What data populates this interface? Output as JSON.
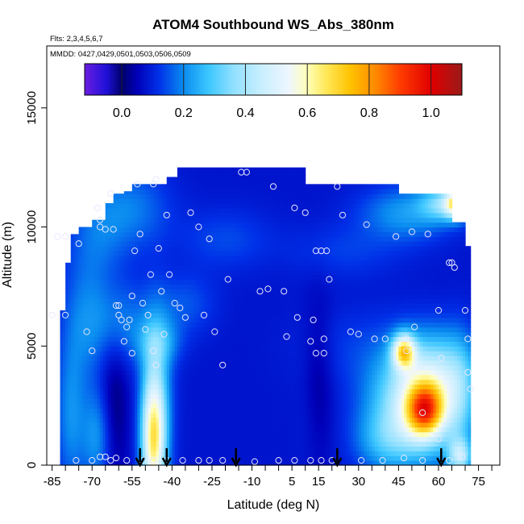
{
  "chart_data": {
    "type": "heatmap",
    "title": "ATOM4 Southbound WS_Abs_380nm",
    "flights_note": "Flts: 2,3,4,5,6,7",
    "dates_note": "MMDD: 0427,0429,0501,0503,0506,0509",
    "xlabel": "Latitude (deg N)",
    "ylabel": "Altitude (m)",
    "xlim": [
      -87,
      83
    ],
    "ylim": [
      0,
      17600
    ],
    "x_ticks": [
      -85,
      -70,
      -55,
      -40,
      -25,
      -10,
      5,
      15,
      30,
      45,
      60,
      75
    ],
    "x_tick_labels": [
      "-85",
      "-70",
      "-55",
      "-40",
      "-25",
      "-10",
      "5",
      "15",
      "30",
      "45",
      "60",
      "75"
    ],
    "y_ticks": [
      0,
      5000,
      10000,
      15000
    ],
    "y_tick_labels": [
      "0",
      "5000",
      "10000",
      "15000"
    ],
    "colorbar": {
      "range": [
        -0.12,
        1.1
      ],
      "ticks": [
        0.0,
        0.2,
        0.4,
        0.6,
        0.8,
        1.0
      ],
      "tick_labels": [
        "0.0",
        "0.2",
        "0.4",
        "0.6",
        "0.8",
        "1.0"
      ],
      "divisions": [
        0.0,
        0.2,
        0.4,
        0.6,
        0.8,
        1.0
      ],
      "colors": [
        {
          "v": -0.12,
          "c": "#6a1ee0"
        },
        {
          "v": -0.05,
          "c": "#1f10d8"
        },
        {
          "v": 0.0,
          "c": "#00006a"
        },
        {
          "v": 0.05,
          "c": "#0000b8"
        },
        {
          "v": 0.12,
          "c": "#0030e8"
        },
        {
          "v": 0.2,
          "c": "#0a8cf0"
        },
        {
          "v": 0.28,
          "c": "#3cc6ff"
        },
        {
          "v": 0.36,
          "c": "#90e0ff"
        },
        {
          "v": 0.45,
          "c": "#c8eefe"
        },
        {
          "v": 0.54,
          "c": "#eef6ff"
        },
        {
          "v": 0.6,
          "c": "#ffffb8"
        },
        {
          "v": 0.66,
          "c": "#ffe85a"
        },
        {
          "v": 0.74,
          "c": "#ffc200"
        },
        {
          "v": 0.82,
          "c": "#ff8a00"
        },
        {
          "v": 0.9,
          "c": "#ff3c00"
        },
        {
          "v": 1.0,
          "c": "#e00000"
        },
        {
          "v": 1.1,
          "c": "#9a1a1a"
        }
      ]
    },
    "data_extent": {
      "lat_edges": [
        -82,
        -80,
        -78,
        -75,
        -70,
        -65,
        -62,
        -58,
        -55,
        -52,
        -48,
        -45,
        -42,
        -38,
        -35,
        -30,
        -25,
        -20,
        -15,
        -10,
        -5,
        0,
        5,
        10,
        15,
        20,
        25,
        30,
        35,
        40,
        45,
        50,
        55,
        60,
        65,
        70,
        72
      ],
      "top_alt_m": [
        6500,
        8500,
        9700,
        10000,
        10300,
        11000,
        11400,
        11500,
        11800,
        11800,
        11800,
        11800,
        12100,
        12500,
        12500,
        12500,
        12500,
        12500,
        12500,
        12500,
        12500,
        12500,
        12500,
        11800,
        11800,
        11800,
        11800,
        11800,
        11800,
        11800,
        11400,
        11400,
        11400,
        11400,
        10200,
        9200
      ]
    },
    "background_value": 0.08,
    "features": [
      {
        "lat": -55,
        "alt": 10800,
        "slat": 10,
        "salt": 1200,
        "value": 0.18
      },
      {
        "lat": -68,
        "alt": 9500,
        "slat": 8,
        "salt": 1500,
        "value": 0.16
      },
      {
        "lat": -73,
        "alt": 6000,
        "slat": 6,
        "salt": 1800,
        "value": 0.17
      },
      {
        "lat": -60,
        "alt": 6000,
        "slat": 8,
        "salt": 1200,
        "value": 0.19
      },
      {
        "lat": -45,
        "alt": 5200,
        "slat": 6,
        "salt": 700,
        "value": 0.2
      },
      {
        "lat": -35,
        "alt": 6800,
        "slat": 8,
        "salt": 900,
        "value": 0.15
      },
      {
        "lat": -20,
        "alt": 9500,
        "slat": 12,
        "salt": 900,
        "value": 0.14
      },
      {
        "lat": 25,
        "alt": 9000,
        "slat": 15,
        "salt": 800,
        "value": 0.13
      },
      {
        "lat": 48,
        "alt": 10600,
        "slat": 12,
        "salt": 800,
        "value": 0.22
      },
      {
        "lat": 62,
        "alt": 11000,
        "slat": 6,
        "salt": 500,
        "value": 0.3
      },
      {
        "lat": 67,
        "alt": 11000,
        "slat": 3,
        "salt": 400,
        "value": 0.55
      },
      {
        "lat": -78,
        "alt": 2000,
        "slat": 4,
        "salt": 2200,
        "value": 0.2
      },
      {
        "lat": -68,
        "alt": 1200,
        "slat": 4,
        "salt": 1500,
        "value": 0.22
      },
      {
        "lat": -47,
        "alt": 1000,
        "slat": 3,
        "salt": 1800,
        "value": 0.5
      },
      {
        "lat": -46,
        "alt": 2500,
        "slat": 4,
        "salt": 2600,
        "value": 0.3
      },
      {
        "lat": 52,
        "alt": 2600,
        "slat": 12,
        "salt": 1600,
        "value": 0.45
      },
      {
        "lat": 55,
        "alt": 2300,
        "slat": 5,
        "salt": 800,
        "value": 0.58
      },
      {
        "lat": 47,
        "alt": 4800,
        "slat": 3,
        "salt": 500,
        "value": 0.55
      },
      {
        "lat": 60,
        "alt": 4000,
        "slat": 10,
        "salt": 1200,
        "value": 0.25
      },
      {
        "lat": 40,
        "alt": 1000,
        "slat": 8,
        "salt": 900,
        "value": 0.2
      },
      {
        "lat": 68,
        "alt": 2500,
        "slat": 4,
        "salt": 2000,
        "value": 0.18
      },
      {
        "lat": 68,
        "alt": 400,
        "slat": 3,
        "salt": 500,
        "value": 0.35
      },
      {
        "lat": 15,
        "alt": 3500,
        "slat": 4,
        "salt": 2500,
        "value": 0.02
      },
      {
        "lat": 12,
        "alt": 1800,
        "slat": 4,
        "salt": 1500,
        "value": 0.1
      },
      {
        "lat": -62,
        "alt": 2500,
        "slat": 4,
        "salt": 2500,
        "value": 0.0
      },
      {
        "lat": 28,
        "alt": 5000,
        "slat": 15,
        "salt": 1200,
        "value": 0.12
      }
    ],
    "observation_points": [
      {
        "lat": -83,
        "alt": 9600
      },
      {
        "lat": -80,
        "alt": 9600
      },
      {
        "lat": -75,
        "alt": 9300
      },
      {
        "lat": -72,
        "alt": 5600
      },
      {
        "lat": -70,
        "alt": 4800
      },
      {
        "lat": -68,
        "alt": 10800
      },
      {
        "lat": -67,
        "alt": 10300
      },
      {
        "lat": -67,
        "alt": 10000
      },
      {
        "lat": -65,
        "alt": 9900
      },
      {
        "lat": -63,
        "alt": 11400
      },
      {
        "lat": -62,
        "alt": 9900
      },
      {
        "lat": -61,
        "alt": 6700
      },
      {
        "lat": -60,
        "alt": 6700
      },
      {
        "lat": -60,
        "alt": 6300
      },
      {
        "lat": -59,
        "alt": 6100
      },
      {
        "lat": -58,
        "alt": 5200
      },
      {
        "lat": -57,
        "alt": 5800
      },
      {
        "lat": -56,
        "alt": 6100
      },
      {
        "lat": -55,
        "alt": 4700
      },
      {
        "lat": -55,
        "alt": 7100
      },
      {
        "lat": -54,
        "alt": 9000
      },
      {
        "lat": -53,
        "alt": 11800
      },
      {
        "lat": -52,
        "alt": 9700
      },
      {
        "lat": -51,
        "alt": 6800
      },
      {
        "lat": -50,
        "alt": 5700
      },
      {
        "lat": -49,
        "alt": 6300
      },
      {
        "lat": -48,
        "alt": 8000
      },
      {
        "lat": -47,
        "alt": 11800
      },
      {
        "lat": -46,
        "alt": 12000
      },
      {
        "lat": -47,
        "alt": 4800
      },
      {
        "lat": -46,
        "alt": 4200
      },
      {
        "lat": -45,
        "alt": 9100
      },
      {
        "lat": -44,
        "alt": 7300
      },
      {
        "lat": -43,
        "alt": 5500
      },
      {
        "lat": -42,
        "alt": 10500
      },
      {
        "lat": -41,
        "alt": 8000
      },
      {
        "lat": -39,
        "alt": 6800
      },
      {
        "lat": -37,
        "alt": 6600
      },
      {
        "lat": -35,
        "alt": 6200
      },
      {
        "lat": -33,
        "alt": 10600
      },
      {
        "lat": -30,
        "alt": 10000
      },
      {
        "lat": -28,
        "alt": 6300
      },
      {
        "lat": -26,
        "alt": 9500
      },
      {
        "lat": -24,
        "alt": 5600
      },
      {
        "lat": -21,
        "alt": 4200
      },
      {
        "lat": -19,
        "alt": 7800
      },
      {
        "lat": -14,
        "alt": 12300
      },
      {
        "lat": -12,
        "alt": 12300
      },
      {
        "lat": -7,
        "alt": 7300
      },
      {
        "lat": -4,
        "alt": 7400
      },
      {
        "lat": -2,
        "alt": 11700
      },
      {
        "lat": 2,
        "alt": 7300
      },
      {
        "lat": 3,
        "alt": 5400
      },
      {
        "lat": 6,
        "alt": 10800
      },
      {
        "lat": 7,
        "alt": 6200
      },
      {
        "lat": 10,
        "alt": 10600
      },
      {
        "lat": 12,
        "alt": 5200
      },
      {
        "lat": 13,
        "alt": 6100
      },
      {
        "lat": 14,
        "alt": 9000
      },
      {
        "lat": 14,
        "alt": 4700
      },
      {
        "lat": 16,
        "alt": 9000
      },
      {
        "lat": 17,
        "alt": 5300
      },
      {
        "lat": 17,
        "alt": 4700
      },
      {
        "lat": 18,
        "alt": 9000
      },
      {
        "lat": 19,
        "alt": 7800
      },
      {
        "lat": 22,
        "alt": 11700
      },
      {
        "lat": 24,
        "alt": 10500
      },
      {
        "lat": 27,
        "alt": 5600
      },
      {
        "lat": 30,
        "alt": 5500
      },
      {
        "lat": 33,
        "alt": 10100
      },
      {
        "lat": 36,
        "alt": 5300
      },
      {
        "lat": 40,
        "alt": 5300
      },
      {
        "lat": 44,
        "alt": 9600
      },
      {
        "lat": 48,
        "alt": 5300
      },
      {
        "lat": 48,
        "alt": 4800
      },
      {
        "lat": 50,
        "alt": 9800
      },
      {
        "lat": 51,
        "alt": 5800
      },
      {
        "lat": 56,
        "alt": 9700
      },
      {
        "lat": 60,
        "alt": 6500
      },
      {
        "lat": 61,
        "alt": 4500
      },
      {
        "lat": 64,
        "alt": 8500
      },
      {
        "lat": 65,
        "alt": 8500
      },
      {
        "lat": 66,
        "alt": 8300
      },
      {
        "lat": 70,
        "alt": 6500
      },
      {
        "lat": 71,
        "alt": 5300
      },
      {
        "lat": 71,
        "alt": 3900
      },
      {
        "lat": 72,
        "alt": 3200
      },
      {
        "lat": 54,
        "alt": 2200
      },
      {
        "lat": 60,
        "alt": 1100
      },
      {
        "lat": -80,
        "alt": 6300
      },
      {
        "lat": -85,
        "alt": 6300
      },
      {
        "lat": -76,
        "alt": 200
      },
      {
        "lat": -70,
        "alt": 200
      },
      {
        "lat": -67,
        "alt": 350
      },
      {
        "lat": -65,
        "alt": 350
      },
      {
        "lat": -63,
        "alt": 200
      },
      {
        "lat": -61,
        "alt": 300
      },
      {
        "lat": -57,
        "alt": 200
      },
      {
        "lat": -51,
        "alt": 200
      },
      {
        "lat": -47,
        "alt": 200
      },
      {
        "lat": -42,
        "alt": 200
      },
      {
        "lat": -36,
        "alt": 200
      },
      {
        "lat": -30,
        "alt": 200
      },
      {
        "lat": -26,
        "alt": 200
      },
      {
        "lat": -21,
        "alt": 200
      },
      {
        "lat": -9,
        "alt": 150
      },
      {
        "lat": 0,
        "alt": 200
      },
      {
        "lat": 6,
        "alt": 200
      },
      {
        "lat": 12,
        "alt": 200
      },
      {
        "lat": 16,
        "alt": 200
      },
      {
        "lat": 20,
        "alt": 200
      },
      {
        "lat": 31,
        "alt": 200
      },
      {
        "lat": 39,
        "alt": 200
      },
      {
        "lat": 47,
        "alt": 300
      },
      {
        "lat": 54,
        "alt": 200
      },
      {
        "lat": 64,
        "alt": 200
      },
      {
        "lat": 69,
        "alt": 350
      }
    ],
    "arrow_markers_lat": [
      -52,
      -42,
      -16,
      22,
      61
    ]
  }
}
